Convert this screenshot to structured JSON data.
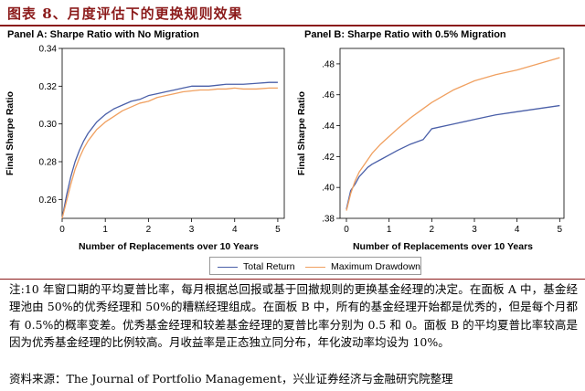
{
  "figure": {
    "title": "图表 8、月度评估下的更换规则效果",
    "note": "注:10 年窗口期的平均夏普比率，每月根据总回报或基于回撤规则的更换基金经理的决定。在面板 A 中，基金经理池由 50%的优秀经理和 50%的糟糕经理组成。在面板 B 中，所有的基金经理开始都是优秀的，但是每个月都有 0.5%的概率变差。优秀基金经理和较差基金经理的夏普比率分别为 0.5 和 0。面板 B 的平均夏普比率较高是因为优秀基金经理的比例较高。月收益率是正态独立同分布，年化波动率均设为 10%。",
    "source": "资料来源：The Journal of Portfolio Management，兴业证券经济与金融研究院整理"
  },
  "legend": {
    "items": [
      {
        "label": "Total Return",
        "color": "#4a5fa8"
      },
      {
        "label": "Maximum Drawdown",
        "color": "#f0a060"
      }
    ]
  },
  "chart_data": [
    {
      "type": "line",
      "title": "Panel A:  Sharpe Ratio with No Migration",
      "xlabel": "Number of Replacements over 10 Years",
      "ylabel": "Final Sharpe Ratio",
      "xlim": [
        0,
        5.15
      ],
      "ylim": [
        0.25,
        0.34
      ],
      "xticks": [
        0,
        1,
        2,
        3,
        4,
        5
      ],
      "yticks": [
        0.26,
        0.28,
        0.3,
        0.32,
        0.34
      ],
      "ytick_labels": [
        "0.26",
        "0.28",
        "0.30",
        "0.32",
        "0.34"
      ],
      "grid": false,
      "series": [
        {
          "name": "Total Return",
          "color": "#4a5fa8",
          "x": [
            0,
            0.1,
            0.2,
            0.3,
            0.4,
            0.5,
            0.6,
            0.7,
            0.8,
            1.0,
            1.2,
            1.4,
            1.6,
            1.8,
            2.0,
            2.2,
            2.4,
            2.6,
            2.8,
            3.0,
            3.2,
            3.4,
            3.6,
            3.8,
            4.0,
            4.2,
            4.5,
            4.8,
            5.0
          ],
          "y": [
            0.25,
            0.262,
            0.272,
            0.28,
            0.286,
            0.291,
            0.295,
            0.298,
            0.301,
            0.305,
            0.308,
            0.31,
            0.312,
            0.313,
            0.315,
            0.316,
            0.317,
            0.318,
            0.319,
            0.32,
            0.32,
            0.32,
            0.3205,
            0.321,
            0.321,
            0.321,
            0.3215,
            0.322,
            0.322
          ]
        },
        {
          "name": "Maximum Drawdown",
          "color": "#f0a060",
          "x": [
            0,
            0.1,
            0.2,
            0.3,
            0.4,
            0.5,
            0.6,
            0.7,
            0.8,
            1.0,
            1.2,
            1.4,
            1.6,
            1.8,
            2.0,
            2.2,
            2.4,
            2.6,
            2.8,
            3.0,
            3.2,
            3.4,
            3.6,
            3.8,
            4.0,
            4.2,
            4.5,
            4.8,
            5.0
          ],
          "y": [
            0.25,
            0.259,
            0.268,
            0.276,
            0.282,
            0.287,
            0.291,
            0.294,
            0.297,
            0.301,
            0.304,
            0.307,
            0.309,
            0.311,
            0.312,
            0.314,
            0.315,
            0.316,
            0.317,
            0.3175,
            0.318,
            0.318,
            0.3185,
            0.3185,
            0.319,
            0.3185,
            0.3185,
            0.319,
            0.319
          ]
        }
      ]
    },
    {
      "type": "line",
      "title": "Panel B: Sharpe Ratio with 0.5% Migration",
      "xlabel": "Number of Replacements over 10 Years",
      "ylabel": "Final Sharpe Ratio",
      "xlim": [
        -0.15,
        5.1
      ],
      "ylim": [
        0.38,
        0.49
      ],
      "xticks": [
        0,
        1,
        2,
        3,
        4,
        5
      ],
      "yticks": [
        0.38,
        0.4,
        0.42,
        0.44,
        0.46,
        0.48
      ],
      "ytick_labels": [
        ".38",
        ".40",
        ".42",
        ".44",
        ".46",
        ".48"
      ],
      "grid": false,
      "series": [
        {
          "name": "Total Return",
          "color": "#4a5fa8",
          "x": [
            0,
            0.1,
            0.2,
            0.3,
            0.4,
            0.5,
            0.6,
            0.8,
            1.0,
            1.2,
            1.5,
            1.8,
            2.0,
            2.5,
            3.0,
            3.5,
            4.0,
            4.5,
            5.0
          ],
          "y": [
            0.386,
            0.398,
            0.402,
            0.407,
            0.41,
            0.413,
            0.415,
            0.418,
            0.421,
            0.424,
            0.428,
            0.431,
            0.438,
            0.441,
            0.444,
            0.447,
            0.449,
            0.451,
            0.453
          ]
        },
        {
          "name": "Maximum Drawdown",
          "color": "#f0a060",
          "x": [
            0,
            0.1,
            0.2,
            0.3,
            0.4,
            0.5,
            0.6,
            0.8,
            1.0,
            1.2,
            1.5,
            1.8,
            2.0,
            2.5,
            3.0,
            3.5,
            4.0,
            4.5,
            5.0
          ],
          "y": [
            0.385,
            0.396,
            0.404,
            0.41,
            0.414,
            0.418,
            0.422,
            0.428,
            0.433,
            0.438,
            0.445,
            0.451,
            0.455,
            0.463,
            0.469,
            0.473,
            0.476,
            0.48,
            0.484
          ]
        }
      ]
    }
  ]
}
